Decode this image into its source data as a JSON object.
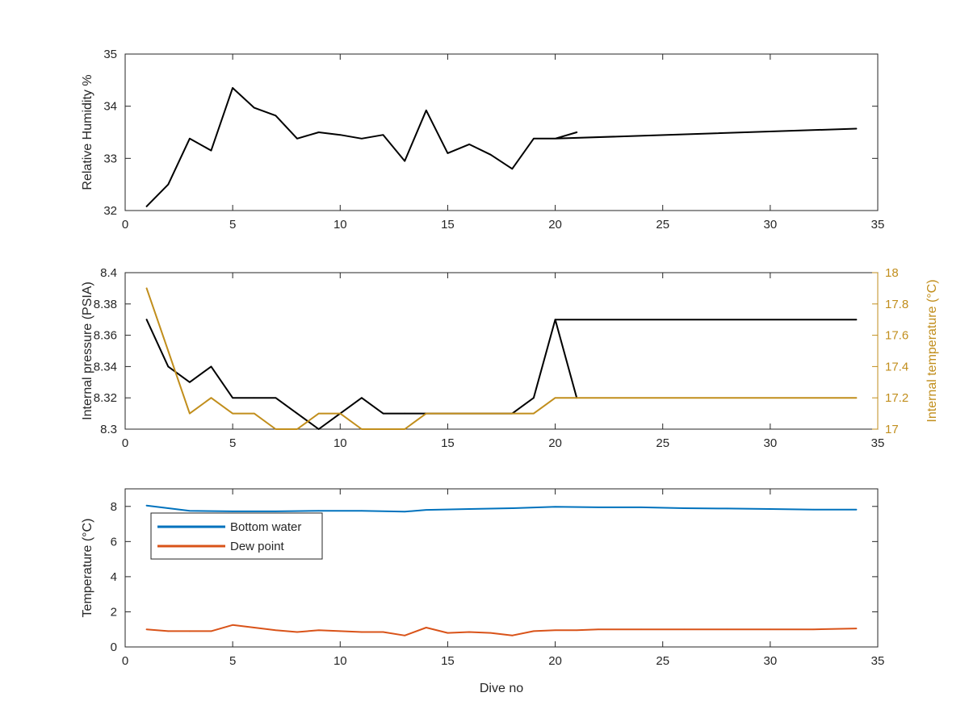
{
  "chart_data": [
    {
      "type": "line",
      "xlabel": "",
      "ylabel": "Relative Humidity %",
      "xlim": [
        0,
        35
      ],
      "ylim": [
        32,
        35
      ],
      "xticks": [
        "0",
        "5",
        "10",
        "15",
        "20",
        "25",
        "30",
        "35"
      ],
      "yticks": [
        "32",
        "33",
        "34",
        "35"
      ],
      "grid": false,
      "series": [
        {
          "color": "#000000",
          "x": [
            1,
            2,
            3,
            4,
            5,
            6,
            7,
            8,
            9,
            10,
            11,
            12,
            13,
            14,
            15,
            16,
            17,
            18,
            19,
            20,
            21,
            20,
            34
          ],
          "y": [
            32.08,
            32.5,
            33.38,
            33.15,
            34.35,
            33.97,
            33.82,
            33.38,
            33.5,
            33.45,
            33.38,
            33.45,
            32.95,
            33.92,
            33.1,
            33.27,
            33.07,
            32.8,
            33.38,
            33.38,
            33.5,
            33.38,
            33.57
          ]
        }
      ]
    },
    {
      "type": "line",
      "xlabel": "",
      "ylabel": "Internal pressure (PSIA)",
      "ylabel_right": "Internal temperature (°C)",
      "xlim": [
        0,
        35
      ],
      "ylim": [
        8.3,
        8.4
      ],
      "ylim_right": [
        17,
        18
      ],
      "xticks": [
        "0",
        "5",
        "10",
        "15",
        "20",
        "25",
        "30",
        "35"
      ],
      "yticks": [
        "8.3",
        "8.32",
        "8.34",
        "8.36",
        "8.38",
        "8.4"
      ],
      "yticks_right": [
        "17",
        "17.2",
        "17.4",
        "17.6",
        "17.8",
        "18"
      ],
      "grid": false,
      "series": [
        {
          "color": "#000000",
          "axis": "left",
          "x": [
            1,
            2,
            3,
            4,
            5,
            6,
            7,
            8,
            9,
            10,
            11,
            12,
            13,
            14,
            15,
            16,
            17,
            18,
            19,
            20,
            21,
            20,
            34
          ],
          "y": [
            8.37,
            8.34,
            8.33,
            8.34,
            8.32,
            8.32,
            8.32,
            8.31,
            8.3,
            8.31,
            8.32,
            8.31,
            8.31,
            8.31,
            8.31,
            8.31,
            8.31,
            8.31,
            8.32,
            8.37,
            8.32,
            8.37,
            8.37
          ]
        },
        {
          "color": "#C18E1C",
          "axis": "right",
          "x": [
            1,
            2,
            3,
            4,
            5,
            6,
            7,
            8,
            9,
            10,
            11,
            12,
            13,
            14,
            15,
            16,
            17,
            18,
            19,
            20,
            34
          ],
          "y": [
            17.9,
            17.5,
            17.1,
            17.2,
            17.1,
            17.1,
            17.0,
            17.0,
            17.1,
            17.1,
            17.0,
            17.0,
            17.0,
            17.1,
            17.1,
            17.1,
            17.1,
            17.1,
            17.1,
            17.2,
            17.2
          ]
        }
      ]
    },
    {
      "type": "line",
      "xlabel": "Dive no",
      "ylabel": "Temperature (°C)",
      "xlim": [
        0,
        35
      ],
      "ylim": [
        0,
        9
      ],
      "xticks": [
        "0",
        "5",
        "10",
        "15",
        "20",
        "25",
        "30",
        "35"
      ],
      "yticks": [
        "0",
        "2",
        "4",
        "6",
        "8"
      ],
      "grid": false,
      "legend_position": "upper-left",
      "series": [
        {
          "name": "Bottom water",
          "color": "#0072BD",
          "x": [
            1,
            2,
            3,
            5,
            7,
            9,
            11,
            13,
            14,
            16,
            18,
            20,
            22,
            24,
            26,
            28,
            30,
            32,
            34
          ],
          "y": [
            8.05,
            7.9,
            7.75,
            7.72,
            7.72,
            7.75,
            7.75,
            7.7,
            7.8,
            7.85,
            7.9,
            7.98,
            7.95,
            7.95,
            7.9,
            7.88,
            7.85,
            7.82,
            7.82
          ]
        },
        {
          "name": "Dew point",
          "color": "#D95319",
          "x": [
            1,
            2,
            3,
            4,
            5,
            6,
            7,
            8,
            9,
            10,
            11,
            12,
            13,
            14,
            15,
            16,
            17,
            18,
            19,
            20,
            21,
            22,
            24,
            26,
            28,
            30,
            32,
            34
          ],
          "y": [
            1.0,
            0.9,
            0.9,
            0.9,
            1.25,
            1.1,
            0.95,
            0.85,
            0.95,
            0.9,
            0.85,
            0.85,
            0.65,
            1.1,
            0.8,
            0.85,
            0.8,
            0.65,
            0.9,
            0.95,
            0.95,
            1.0,
            1.0,
            1.0,
            1.0,
            1.0,
            1.0,
            1.05
          ]
        }
      ]
    }
  ]
}
